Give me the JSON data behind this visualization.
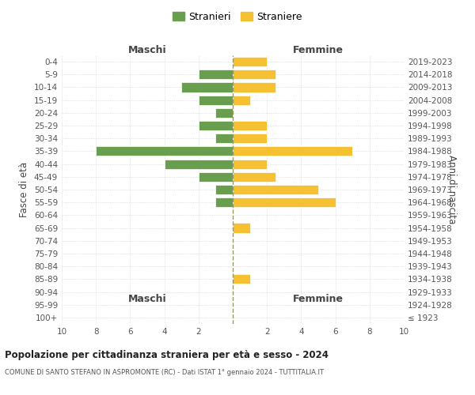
{
  "age_groups": [
    "100+",
    "95-99",
    "90-94",
    "85-89",
    "80-84",
    "75-79",
    "70-74",
    "65-69",
    "60-64",
    "55-59",
    "50-54",
    "45-49",
    "40-44",
    "35-39",
    "30-34",
    "25-29",
    "20-24",
    "15-19",
    "10-14",
    "5-9",
    "0-4"
  ],
  "birth_years": [
    "≤ 1923",
    "1924-1928",
    "1929-1933",
    "1934-1938",
    "1939-1943",
    "1944-1948",
    "1949-1953",
    "1954-1958",
    "1959-1963",
    "1964-1968",
    "1969-1973",
    "1974-1978",
    "1979-1983",
    "1984-1988",
    "1989-1993",
    "1994-1998",
    "1999-2003",
    "2004-2008",
    "2009-2013",
    "2014-2018",
    "2019-2023"
  ],
  "stranieri": [
    0,
    0,
    0,
    0,
    0,
    0,
    0,
    0,
    0,
    1,
    1,
    2,
    4,
    8,
    1,
    2,
    1,
    2,
    3,
    2,
    0
  ],
  "straniere": [
    0,
    0,
    0,
    1,
    0,
    0,
    0,
    1,
    0,
    6,
    5,
    2.5,
    2,
    7,
    2,
    2,
    0,
    1,
    2.5,
    2.5,
    2
  ],
  "color_stranieri": "#6a9e4f",
  "color_straniere": "#f5c032",
  "xlim": 10,
  "xlabel_maschi": "Maschi",
  "xlabel_femmine": "Femmine",
  "ylabel": "Fasce di età",
  "ylabel_right": "Anni di nascita",
  "title": "Popolazione per cittadinanza straniera per età e sesso - 2024",
  "subtitle": "COMUNE DI SANTO STEFANO IN ASPROMONTE (RC) - Dati ISTAT 1° gennaio 2024 - TUTTITALIA.IT",
  "legend_stranieri": "Stranieri",
  "legend_straniere": "Straniere",
  "bg_color": "#ffffff",
  "grid_color": "#cccccc"
}
